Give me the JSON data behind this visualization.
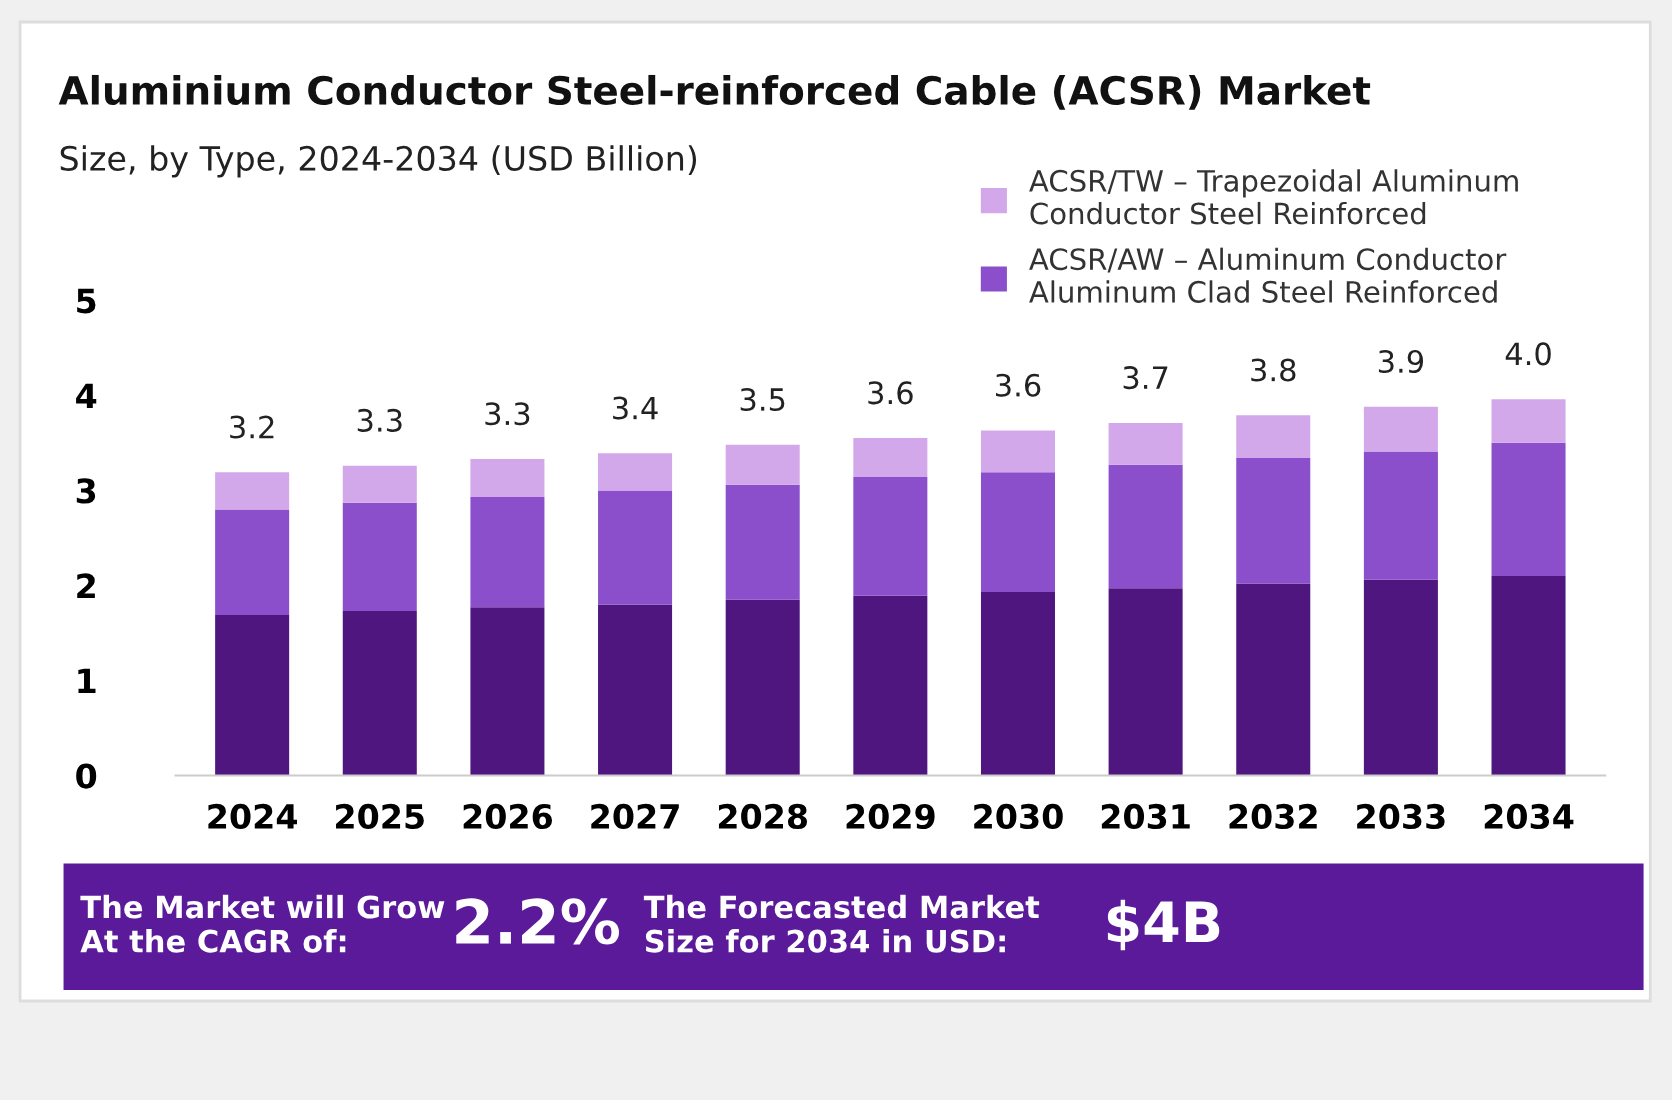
{
  "chart_data": {
    "type": "bar",
    "stacked": true,
    "title": "Aluminium Conductor Steel-reinforced Cable (ACSR) Market",
    "subtitle": "Size, by Type, 2024-2034 (USD Billion)",
    "categories": [
      "2024",
      "2025",
      "2026",
      "2027",
      "2028",
      "2029",
      "2030",
      "2031",
      "2032",
      "2033",
      "2034"
    ],
    "series": [
      {
        "color": "#4f1680",
        "values": [
          1.69,
          1.73,
          1.77,
          1.8,
          1.85,
          1.89,
          1.93,
          1.97,
          2.02,
          2.06,
          2.1
        ]
      },
      {
        "name": "ACSR/AW – Aluminum Conductor\nAluminum Clad Steel Reinforced",
        "color": "#8b4fcc",
        "values": [
          1.11,
          1.14,
          1.16,
          1.2,
          1.21,
          1.25,
          1.26,
          1.3,
          1.32,
          1.35,
          1.4
        ]
      },
      {
        "name": "ACSR/TW – Trapezoidal Aluminum\nConductor Steel Reinforced",
        "color": "#d2a8ea",
        "values": [
          0.39,
          0.39,
          0.4,
          0.39,
          0.42,
          0.41,
          0.44,
          0.44,
          0.45,
          0.47,
          0.46
        ]
      }
    ],
    "totals": [
      "3.2",
      "3.3",
      "3.3",
      "3.4",
      "3.5",
      "3.6",
      "3.6",
      "3.7",
      "3.8",
      "3.9",
      "4.0"
    ],
    "ylim": [
      0,
      5
    ],
    "yticks": [
      0,
      1,
      2,
      3,
      4,
      5
    ],
    "grid": false,
    "legend": "top right",
    "annotations": [
      "The Market will Grow\nAt the CAGR of:",
      "2.2%",
      "The Forecasted Market\nSize for 2034 in USD:",
      "$4B"
    ]
  }
}
